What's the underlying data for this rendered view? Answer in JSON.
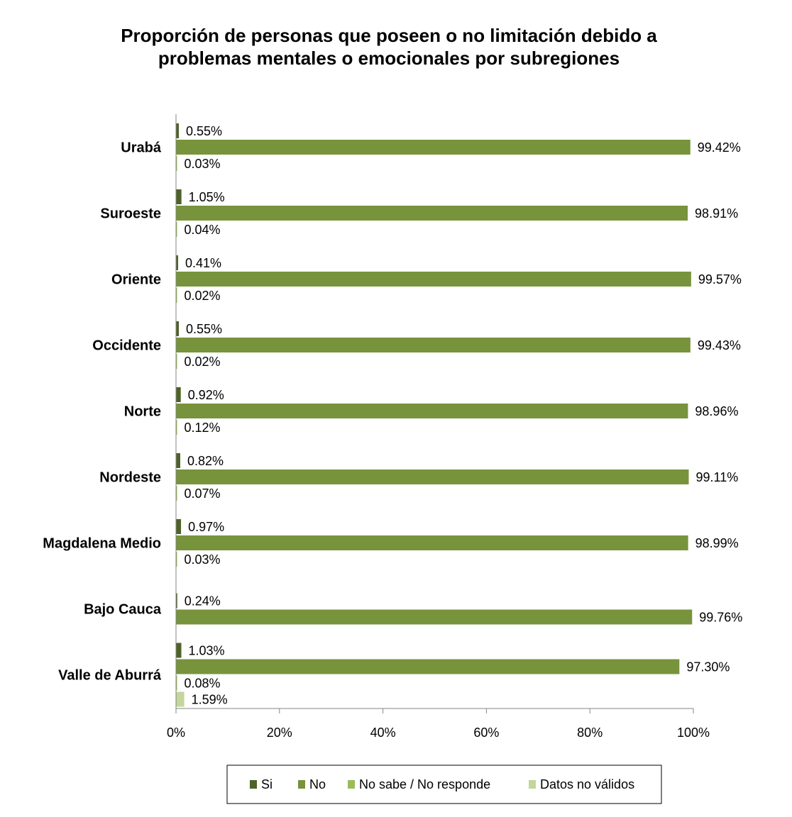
{
  "chart_data": {
    "type": "bar",
    "orientation": "horizontal",
    "title_lines": [
      "Proporción de personas que poseen o no limitación debido a",
      "problemas mentales o emocionales por subregiones"
    ],
    "categories": [
      "Urabá",
      "Suroeste",
      "Oriente",
      "Occidente",
      "Norte",
      "Nordeste",
      "Magdalena Medio",
      "Bajo Cauca",
      "Valle de Aburrá"
    ],
    "series": [
      {
        "name": "Si",
        "color": "#4f6228",
        "values": [
          0.55,
          1.05,
          0.41,
          0.55,
          0.92,
          0.82,
          0.97,
          0.24,
          1.03
        ],
        "labels": [
          "0.55%",
          "1.05%",
          "0.41%",
          "0.55%",
          "0.92%",
          "0.82%",
          "0.97%",
          "0.24%",
          "1.03%"
        ]
      },
      {
        "name": "No",
        "color": "#77933c",
        "values": [
          99.42,
          98.91,
          99.57,
          99.43,
          98.96,
          99.11,
          98.99,
          99.76,
          97.3
        ],
        "labels": [
          "99.42%",
          "98.91%",
          "99.57%",
          "99.43%",
          "98.96%",
          "99.11%",
          "98.99%",
          "99.76%",
          "97.30%"
        ]
      },
      {
        "name": "No sabe / No responde",
        "color": "#9bbb59",
        "values": [
          0.03,
          0.04,
          0.02,
          0.02,
          0.12,
          0.07,
          0.03,
          null,
          0.08
        ],
        "labels": [
          "0.03%",
          "0.04%",
          "0.02%",
          "0.02%",
          "0.12%",
          "0.07%",
          "0.03%",
          "",
          "0.08%"
        ]
      },
      {
        "name": "Datos no válidos",
        "color": "#c3d69b",
        "values": [
          null,
          null,
          null,
          null,
          null,
          null,
          null,
          null,
          1.59
        ],
        "labels": [
          "",
          "",
          "",
          "",
          "",
          "",
          "",
          "",
          "1.59%"
        ]
      }
    ],
    "xlim": [
      0,
      100
    ],
    "xticks": [
      0,
      20,
      40,
      60,
      80,
      100
    ],
    "xtick_labels": [
      "0%",
      "20%",
      "40%",
      "60%",
      "80%",
      "100%"
    ],
    "grid": false,
    "legend_position": "bottom"
  }
}
